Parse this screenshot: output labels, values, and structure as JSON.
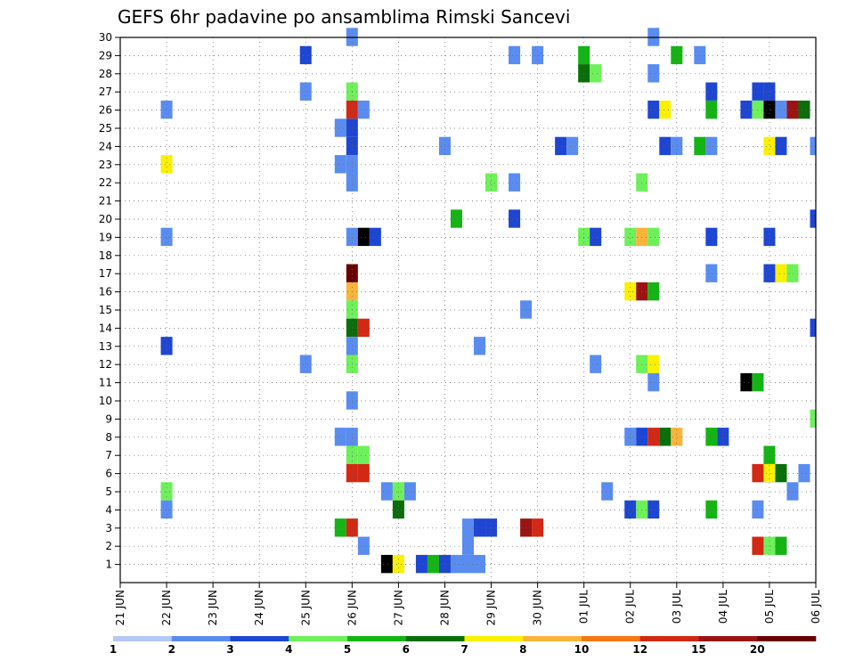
{
  "chart_data": {
    "type": "heatmap",
    "title": "GEFS 6hr padavine po ansamblima Rimski Sancevi",
    "x_tick_labels": [
      "21 JUN",
      "22 JUN",
      "23 JUN",
      "24 JUN",
      "25 JUN",
      "26 JUN",
      "27 JUN",
      "28 JUN",
      "29 JUN",
      "30 JUN",
      "01 JUL",
      "02 JUL",
      "03 JUL",
      "04 JUL",
      "05 JUL",
      "06 JUL"
    ],
    "x_range_days": [
      0,
      15
    ],
    "steps_per_day": 4,
    "y_tick_labels": [
      "1",
      "2",
      "3",
      "4",
      "5",
      "6",
      "7",
      "8",
      "9",
      "10",
      "11",
      "12",
      "13",
      "14",
      "15",
      "16",
      "17",
      "18",
      "19",
      "20",
      "21",
      "22",
      "23",
      "24",
      "25",
      "26",
      "27",
      "28",
      "29",
      "30"
    ],
    "y_range": [
      0,
      30
    ],
    "legend": {
      "labels": [
        "1",
        "2",
        "3",
        "4",
        "5",
        "6",
        "7",
        "8",
        "10",
        "12",
        "15",
        "20"
      ],
      "colors": [
        "#b4c8f5",
        "#5a8cf0",
        "#1e46d2",
        "#6ef05a",
        "#14b414",
        "#0a6e0a",
        "#faf000",
        "#fab43c",
        "#f57814",
        "#d22814",
        "#9b1414",
        "#690000"
      ]
    },
    "points": [
      [
        5,
        30,
        1
      ],
      [
        4,
        29,
        2
      ],
      [
        8.5,
        29,
        1
      ],
      [
        9,
        29,
        1
      ],
      [
        10,
        29,
        4
      ],
      [
        11.5,
        30,
        1
      ],
      [
        12,
        29,
        4
      ],
      [
        12.5,
        29,
        1
      ],
      [
        10,
        28,
        5
      ],
      [
        10.25,
        28,
        3
      ],
      [
        11.5,
        28,
        1
      ],
      [
        4,
        27,
        1
      ],
      [
        5,
        27,
        3
      ],
      [
        12.75,
        27,
        2
      ],
      [
        13.75,
        27,
        2
      ],
      [
        14,
        27,
        2
      ],
      [
        1,
        26,
        1
      ],
      [
        5,
        26,
        9
      ],
      [
        5.25,
        26,
        1
      ],
      [
        11.5,
        26,
        2
      ],
      [
        11.75,
        26,
        6
      ],
      [
        12.75,
        26,
        4
      ],
      [
        13.5,
        26,
        2
      ],
      [
        13.75,
        26,
        3
      ],
      [
        14,
        26,
        12
      ],
      [
        14.25,
        26,
        1
      ],
      [
        14.5,
        26,
        10
      ],
      [
        14.75,
        26,
        5
      ],
      [
        4.75,
        25,
        1
      ],
      [
        5,
        25,
        2
      ],
      [
        5,
        24,
        2
      ],
      [
        7,
        24,
        1
      ],
      [
        9.5,
        24,
        2
      ],
      [
        9.75,
        24,
        1
      ],
      [
        11.75,
        24,
        2
      ],
      [
        12,
        24,
        1
      ],
      [
        12.5,
        24,
        4
      ],
      [
        12.75,
        24,
        1
      ],
      [
        14,
        24,
        6
      ],
      [
        14.25,
        24,
        2
      ],
      [
        15,
        24,
        1
      ],
      [
        1,
        23,
        6
      ],
      [
        4.75,
        23,
        1
      ],
      [
        5,
        23,
        1
      ],
      [
        5,
        22,
        1
      ],
      [
        8,
        22,
        3
      ],
      [
        8.5,
        22,
        1
      ],
      [
        11.25,
        22,
        3
      ],
      [
        7.25,
        20,
        4
      ],
      [
        8.5,
        20,
        2
      ],
      [
        15,
        20,
        2
      ],
      [
        1,
        19,
        1
      ],
      [
        5,
        19,
        1
      ],
      [
        5.25,
        19,
        12
      ],
      [
        5.5,
        19,
        2
      ],
      [
        10,
        19,
        3
      ],
      [
        10.25,
        19,
        2
      ],
      [
        11,
        19,
        3
      ],
      [
        11.25,
        19,
        7
      ],
      [
        11.5,
        19,
        3
      ],
      [
        12.75,
        19,
        2
      ],
      [
        14,
        19,
        2
      ],
      [
        5,
        17,
        11
      ],
      [
        12.75,
        17,
        1
      ],
      [
        14,
        17,
        2
      ],
      [
        14.25,
        17,
        6
      ],
      [
        14.5,
        17,
        3
      ],
      [
        5,
        16,
        7
      ],
      [
        11,
        16,
        6
      ],
      [
        11.25,
        16,
        10
      ],
      [
        11.5,
        16,
        4
      ],
      [
        5,
        15,
        3
      ],
      [
        8.75,
        15,
        1
      ],
      [
        5,
        14,
        5
      ],
      [
        5.25,
        14,
        9
      ],
      [
        15,
        14,
        2
      ],
      [
        1,
        13,
        2
      ],
      [
        7.75,
        13,
        1
      ],
      [
        5,
        13,
        1
      ],
      [
        4,
        12,
        1
      ],
      [
        5,
        12,
        3
      ],
      [
        10.25,
        12,
        1
      ],
      [
        11.25,
        12,
        3
      ],
      [
        11.5,
        12,
        6
      ],
      [
        11.5,
        11,
        1
      ],
      [
        13.5,
        11,
        12
      ],
      [
        13.75,
        11,
        4
      ],
      [
        5,
        10,
        1
      ],
      [
        15,
        9,
        3
      ],
      [
        4.75,
        8,
        1
      ],
      [
        5,
        8,
        1
      ],
      [
        11,
        8,
        1
      ],
      [
        11.25,
        8,
        2
      ],
      [
        11.5,
        8,
        9
      ],
      [
        11.75,
        8,
        5
      ],
      [
        12,
        8,
        7
      ],
      [
        12.75,
        8,
        4
      ],
      [
        13,
        8,
        2
      ],
      [
        5,
        7,
        3
      ],
      [
        5.25,
        7,
        3
      ],
      [
        14,
        7,
        4
      ],
      [
        5,
        6,
        9
      ],
      [
        5.25,
        6,
        9
      ],
      [
        13.75,
        6,
        9
      ],
      [
        14,
        6,
        2
      ],
      [
        14.25,
        6,
        5
      ],
      [
        14,
        6,
        6
      ],
      [
        14.5,
        5,
        1
      ],
      [
        14.75,
        6,
        1
      ],
      [
        1,
        5,
        3
      ],
      [
        5.75,
        5,
        1
      ],
      [
        6,
        5,
        3
      ],
      [
        6.25,
        5,
        1
      ],
      [
        10.5,
        5,
        1
      ],
      [
        1,
        4,
        1
      ],
      [
        6,
        4,
        5
      ],
      [
        11,
        4,
        2
      ],
      [
        11.25,
        4,
        3
      ],
      [
        11.5,
        4,
        2
      ],
      [
        12.75,
        4,
        4
      ],
      [
        13.75,
        4,
        1
      ],
      [
        4.75,
        3,
        4
      ],
      [
        5,
        3,
        9
      ],
      [
        7.5,
        3,
        1
      ],
      [
        7.75,
        3,
        2
      ],
      [
        8,
        3,
        2
      ],
      [
        8.75,
        3,
        10
      ],
      [
        9,
        3,
        9
      ],
      [
        5.25,
        2,
        1
      ],
      [
        7.5,
        2,
        1
      ],
      [
        13.75,
        2,
        9
      ],
      [
        14,
        2,
        3
      ],
      [
        14.25,
        2,
        4
      ],
      [
        5.75,
        1,
        12
      ],
      [
        6,
        1,
        6
      ],
      [
        6.5,
        1,
        2
      ],
      [
        6.75,
        1,
        4
      ],
      [
        7,
        1,
        2
      ],
      [
        7.25,
        1,
        1
      ],
      [
        7.5,
        1,
        1
      ],
      [
        7.75,
        1,
        1
      ]
    ]
  }
}
